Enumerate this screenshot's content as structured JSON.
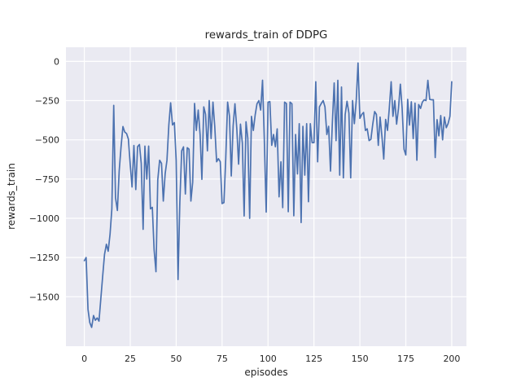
{
  "chart_data": {
    "type": "line",
    "title": "rewards_train of DDPG",
    "xlabel": "episodes",
    "ylabel": "rewards_train",
    "grid": true,
    "legend": null,
    "style": "seaborn-darkgrid",
    "xlim": [
      -10,
      208
    ],
    "ylim": [
      -1815,
      90
    ],
    "xticks": {
      "values": [
        0,
        25,
        50,
        75,
        100,
        125,
        150,
        175,
        200
      ],
      "labels": [
        "0",
        "25",
        "50",
        "75",
        "100",
        "125",
        "150",
        "175",
        "200"
      ]
    },
    "yticks": {
      "values": [
        0,
        -250,
        -500,
        -750,
        -1000,
        -1250,
        -1500
      ],
      "labels": [
        "0",
        "−250",
        "−500",
        "−750",
        "−1000",
        "−1250",
        "−1500"
      ]
    },
    "colors": {
      "line": "#4C72B0",
      "plot_bg": "#EAEAF2",
      "grid": "#FFFFFF",
      "text": "#262626",
      "figure_bg": "#FFFFFF"
    },
    "series": [
      {
        "name": "rewards_train",
        "color": "#4C72B0",
        "x_start": 0,
        "x_step": 1,
        "values": [
          -1270,
          -1250,
          -1580,
          -1665,
          -1695,
          -1620,
          -1650,
          -1635,
          -1655,
          -1510,
          -1370,
          -1230,
          -1165,
          -1210,
          -1100,
          -940,
          -280,
          -870,
          -950,
          -700,
          -545,
          -415,
          -450,
          -460,
          -495,
          -660,
          -800,
          -536,
          -817,
          -544,
          -530,
          -650,
          -1070,
          -540,
          -750,
          -540,
          -940,
          -930,
          -1200,
          -1340,
          -755,
          -630,
          -650,
          -890,
          -715,
          -630,
          -405,
          -264,
          -405,
          -390,
          -630,
          -1390,
          -900,
          -570,
          -545,
          -845,
          -550,
          -560,
          -890,
          -770,
          -268,
          -440,
          -310,
          -466,
          -752,
          -290,
          -337,
          -570,
          -250,
          -492,
          -260,
          -414,
          -640,
          -620,
          -640,
          -906,
          -900,
          -620,
          -260,
          -350,
          -730,
          -410,
          -270,
          -430,
          -655,
          -400,
          -520,
          -985,
          -385,
          -490,
          -1000,
          -350,
          -440,
          -340,
          -270,
          -250,
          -310,
          -120,
          -500,
          -960,
          -260,
          -256,
          -535,
          -466,
          -544,
          -430,
          -863,
          -640,
          -932,
          -260,
          -268,
          -958,
          -260,
          -270,
          -984,
          -466,
          -717,
          -397,
          -1027,
          -414,
          -725,
          -397,
          -894,
          -397,
          -518,
          -518,
          -130,
          -640,
          -290,
          -268,
          -250,
          -290,
          -466,
          -414,
          -699,
          -400,
          -138,
          -505,
          -121,
          -725,
          -164,
          -742,
          -340,
          -254,
          -330,
          -742,
          -250,
          -397,
          -250,
          -10,
          -363,
          -338,
          -325,
          -440,
          -430,
          -505,
          -497,
          -400,
          -320,
          -338,
          -535,
          -355,
          -480,
          -622,
          -370,
          -440,
          -300,
          -130,
          -350,
          -250,
          -400,
          -300,
          -145,
          -300,
          -560,
          -596,
          -242,
          -406,
          -258,
          -492,
          -266,
          -630,
          -275,
          -300,
          -260,
          -245,
          -250,
          -121,
          -242,
          -245,
          -245,
          -613,
          -371,
          -475,
          -345,
          -500,
          -355,
          -423,
          -397,
          -350,
          -130
        ]
      }
    ]
  }
}
